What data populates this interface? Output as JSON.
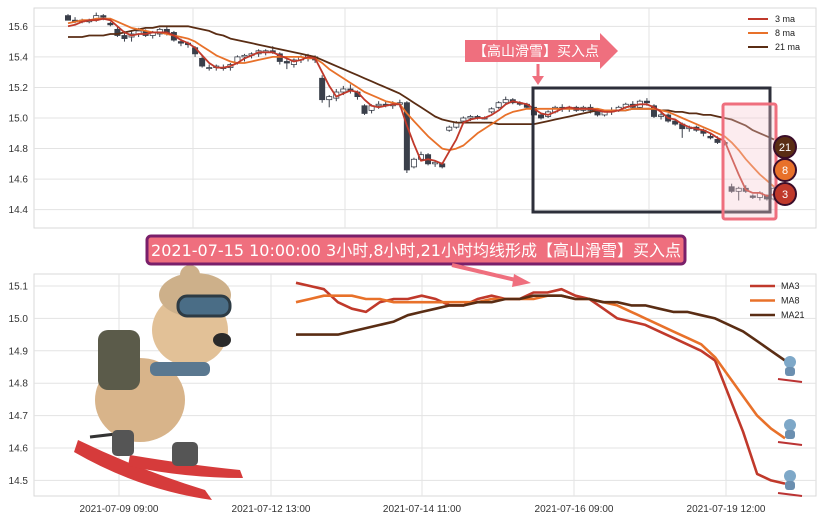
{
  "chart_data": [
    {
      "type": "candlestick",
      "ylim": [
        14.28,
        15.72
      ],
      "yticks": [
        "15.6",
        "15.4",
        "15.2",
        "15.0",
        "14.8",
        "14.6",
        "14.4"
      ],
      "legend": {
        "placement": "top-right",
        "entries": [
          "3 ma",
          "8 ma",
          "21 ma"
        ]
      },
      "grid": true,
      "candles": [
        [
          15.67,
          15.68,
          15.64,
          15.64
        ],
        [
          15.64,
          15.66,
          15.62,
          15.63
        ],
        [
          15.64,
          15.65,
          15.62,
          15.63
        ],
        [
          15.63,
          15.65,
          15.62,
          15.64
        ],
        [
          15.64,
          15.69,
          15.63,
          15.67
        ],
        [
          15.67,
          15.68,
          15.64,
          15.66
        ],
        [
          15.62,
          15.63,
          15.6,
          15.61
        ],
        [
          15.58,
          15.6,
          15.53,
          15.54
        ],
        [
          15.54,
          15.57,
          15.5,
          15.52
        ],
        [
          15.53,
          15.57,
          15.5,
          15.55
        ],
        [
          15.55,
          15.59,
          15.53,
          15.57
        ],
        [
          15.57,
          15.58,
          15.53,
          15.54
        ],
        [
          15.54,
          15.57,
          15.52,
          15.56
        ],
        [
          15.55,
          15.59,
          15.53,
          15.58
        ],
        [
          15.58,
          15.6,
          15.54,
          15.55
        ],
        [
          15.56,
          15.57,
          15.5,
          15.51
        ],
        [
          15.5,
          15.52,
          15.47,
          15.49
        ],
        [
          15.49,
          15.5,
          15.46,
          15.48
        ],
        [
          15.46,
          15.47,
          15.4,
          15.42
        ],
        [
          15.39,
          15.41,
          15.33,
          15.34
        ],
        [
          15.33,
          15.35,
          15.31,
          15.33
        ],
        [
          15.33,
          15.35,
          15.31,
          15.34
        ],
        [
          15.33,
          15.35,
          15.31,
          15.33
        ],
        [
          15.33,
          15.36,
          15.31,
          15.35
        ],
        [
          15.36,
          15.41,
          15.35,
          15.4
        ],
        [
          15.4,
          15.42,
          15.37,
          15.41
        ],
        [
          15.41,
          15.43,
          15.39,
          15.42
        ],
        [
          15.42,
          15.45,
          15.4,
          15.44
        ],
        [
          15.43,
          15.45,
          15.41,
          15.44
        ],
        [
          15.44,
          15.47,
          15.42,
          15.43
        ],
        [
          15.42,
          15.43,
          15.35,
          15.37
        ],
        [
          15.37,
          15.39,
          15.32,
          15.36
        ],
        [
          15.35,
          15.39,
          15.33,
          15.38
        ],
        [
          15.38,
          15.41,
          15.36,
          15.4
        ],
        [
          15.4,
          15.42,
          15.37,
          15.41
        ],
        [
          15.4,
          15.41,
          15.36,
          15.38
        ],
        [
          15.26,
          15.28,
          15.1,
          15.12
        ],
        [
          15.12,
          15.15,
          15.07,
          15.14
        ],
        [
          15.13,
          15.19,
          15.11,
          15.17
        ],
        [
          15.17,
          15.21,
          15.15,
          15.19
        ],
        [
          15.19,
          15.22,
          15.16,
          15.18
        ],
        [
          15.17,
          15.18,
          15.12,
          15.14
        ],
        [
          15.08,
          15.09,
          15.02,
          15.03
        ],
        [
          15.05,
          15.09,
          15.03,
          15.08
        ],
        [
          15.08,
          15.11,
          15.06,
          15.09
        ],
        [
          15.09,
          15.11,
          15.07,
          15.08
        ],
        [
          15.08,
          15.11,
          15.06,
          15.09
        ],
        [
          15.09,
          15.12,
          15.07,
          15.1
        ],
        [
          15.1,
          15.11,
          14.64,
          14.66
        ],
        [
          14.68,
          14.74,
          14.67,
          14.73
        ],
        [
          14.73,
          14.78,
          14.72,
          14.76
        ],
        [
          14.76,
          14.77,
          14.69,
          14.7
        ],
        [
          14.7,
          14.72,
          14.68,
          14.71
        ],
        [
          14.7,
          14.71,
          14.67,
          14.68
        ],
        [
          14.92,
          14.95,
          14.91,
          14.94
        ],
        [
          14.94,
          14.98,
          14.93,
          14.97
        ],
        [
          14.98,
          15.01,
          14.97,
          15.0
        ],
        [
          15.0,
          15.02,
          14.98,
          15.01
        ],
        [
          15.01,
          15.02,
          14.99,
          15.0
        ],
        [
          15.0,
          15.01,
          14.99,
          15.0
        ],
        [
          15.04,
          15.07,
          15.03,
          15.06
        ],
        [
          15.07,
          15.11,
          15.06,
          15.1
        ],
        [
          15.1,
          15.14,
          15.09,
          15.12
        ],
        [
          15.12,
          15.13,
          15.09,
          15.1
        ],
        [
          15.1,
          15.11,
          15.08,
          15.09
        ],
        [
          15.09,
          15.1,
          15.06,
          15.07
        ],
        [
          15.07,
          15.08,
          15.01,
          15.02
        ],
        [
          15.02,
          15.03,
          14.99,
          15.0
        ],
        [
          15.01,
          15.05,
          15.0,
          15.04
        ],
        [
          15.04,
          15.08,
          15.03,
          15.07
        ],
        [
          15.07,
          15.09,
          15.04,
          15.06
        ],
        [
          15.06,
          15.08,
          15.04,
          15.07
        ],
        [
          15.07,
          15.08,
          15.04,
          15.05
        ],
        [
          15.05,
          15.08,
          15.04,
          15.07
        ],
        [
          15.07,
          15.09,
          15.03,
          15.05
        ],
        [
          15.04,
          15.05,
          15.01,
          15.02
        ],
        [
          15.02,
          15.05,
          15.01,
          15.04
        ],
        [
          15.04,
          15.07,
          15.02,
          15.05
        ],
        [
          15.05,
          15.08,
          15.04,
          15.07
        ],
        [
          15.07,
          15.1,
          15.06,
          15.09
        ],
        [
          15.09,
          15.11,
          15.06,
          15.07
        ],
        [
          15.07,
          15.12,
          15.06,
          15.11
        ],
        [
          15.11,
          15.13,
          15.08,
          15.1
        ],
        [
          15.08,
          15.09,
          15.0,
          15.01
        ],
        [
          15.01,
          15.04,
          14.99,
          15.02
        ],
        [
          15.02,
          15.03,
          14.97,
          14.98
        ],
        [
          14.98,
          14.99,
          14.95,
          14.96
        ],
        [
          14.96,
          14.97,
          14.87,
          14.93
        ],
        [
          14.93,
          14.95,
          14.91,
          14.94
        ],
        [
          14.94,
          14.95,
          14.91,
          14.92
        ],
        [
          14.92,
          14.93,
          14.88,
          14.9
        ],
        [
          14.88,
          14.9,
          14.86,
          14.87
        ],
        [
          14.86,
          14.88,
          14.83,
          14.84
        ],
        [
          14.84,
          14.85,
          14.82,
          14.83
        ],
        [
          14.55,
          14.57,
          14.51,
          14.52
        ],
        [
          14.52,
          14.55,
          14.46,
          14.54
        ],
        [
          14.54,
          14.56,
          14.51,
          14.52
        ],
        [
          14.49,
          14.5,
          14.47,
          14.48
        ],
        [
          14.48,
          14.52,
          14.46,
          14.51
        ],
        [
          14.49,
          14.5,
          14.46,
          14.47
        ],
        [
          14.47,
          14.55,
          14.46,
          14.54
        ]
      ],
      "ma3": [
        15.6,
        15.61,
        15.63,
        15.64,
        15.64,
        15.65,
        15.64,
        15.6,
        15.56,
        15.54,
        15.55,
        15.55,
        15.56,
        15.56,
        15.56,
        15.54,
        15.51,
        15.49,
        15.46,
        15.41,
        15.36,
        15.33,
        15.33,
        15.34,
        15.36,
        15.39,
        15.41,
        15.43,
        15.43,
        15.43,
        15.41,
        15.39,
        15.37,
        15.38,
        15.4,
        15.39,
        15.3,
        15.21,
        15.14,
        15.16,
        15.18,
        15.17,
        15.12,
        15.08,
        15.07,
        15.08,
        15.09,
        15.09,
        14.95,
        14.83,
        14.72,
        14.73,
        14.72,
        14.7,
        14.78,
        14.86,
        14.97,
        14.99,
        15.0,
        15.0,
        15.02,
        15.05,
        15.09,
        15.11,
        15.1,
        15.09,
        15.06,
        15.03,
        15.02,
        15.04,
        15.06,
        15.07,
        15.06,
        15.06,
        15.06,
        15.05,
        15.04,
        15.04,
        15.05,
        15.07,
        15.08,
        15.09,
        15.09,
        15.07,
        15.04,
        15.0,
        14.99,
        14.96,
        14.94,
        14.93,
        14.92,
        14.9,
        14.87,
        14.85,
        14.74,
        14.63,
        14.53,
        14.51,
        14.51,
        14.49,
        14.5
      ],
      "ma8": [
        15.62,
        15.63,
        15.64,
        15.64,
        15.65,
        15.65,
        15.65,
        15.63,
        15.61,
        15.59,
        15.58,
        15.57,
        15.56,
        15.56,
        15.55,
        15.54,
        15.53,
        15.52,
        15.5,
        15.47,
        15.44,
        15.41,
        15.39,
        15.37,
        15.36,
        15.36,
        15.37,
        15.38,
        15.39,
        15.4,
        15.4,
        15.4,
        15.4,
        15.4,
        15.39,
        15.39,
        15.36,
        15.32,
        15.29,
        15.26,
        15.23,
        15.2,
        15.17,
        15.15,
        15.13,
        15.11,
        15.1,
        15.09,
        15.03,
        14.98,
        14.93,
        14.88,
        14.84,
        14.8,
        14.79,
        14.8,
        14.82,
        14.86,
        14.9,
        14.93,
        14.96,
        14.99,
        15.02,
        15.04,
        15.05,
        15.06,
        15.06,
        15.06,
        15.06,
        15.06,
        15.06,
        15.06,
        15.06,
        15.06,
        15.06,
        15.06,
        15.05,
        15.05,
        15.05,
        15.05,
        15.06,
        15.06,
        15.06,
        15.06,
        15.05,
        15.04,
        15.02,
        15.0,
        14.98,
        14.96,
        14.94,
        14.92,
        14.9,
        14.88,
        14.84,
        14.79,
        14.73,
        14.68,
        14.63,
        14.59,
        14.55
      ],
      "ma21": [
        15.53,
        15.53,
        15.53,
        15.54,
        15.54,
        15.54,
        15.55,
        15.55,
        15.56,
        15.57,
        15.58,
        15.59,
        15.59,
        15.6,
        15.6,
        15.6,
        15.6,
        15.6,
        15.59,
        15.58,
        15.57,
        15.55,
        15.54,
        15.52,
        15.51,
        15.5,
        15.49,
        15.48,
        15.47,
        15.46,
        15.45,
        15.44,
        15.43,
        15.42,
        15.41,
        15.4,
        15.38,
        15.36,
        15.34,
        15.32,
        15.3,
        15.28,
        15.26,
        15.24,
        15.22,
        15.2,
        15.18,
        15.16,
        15.13,
        15.1,
        15.07,
        15.04,
        15.01,
        14.99,
        14.98,
        14.97,
        14.97,
        14.97,
        14.97,
        14.97,
        14.97,
        14.96,
        14.96,
        14.96,
        14.96,
        14.96,
        14.96,
        14.97,
        14.98,
        14.99,
        15.0,
        15.01,
        15.02,
        15.03,
        15.04,
        15.05,
        15.05,
        15.05,
        15.05,
        15.05,
        15.06,
        15.06,
        15.06,
        15.06,
        15.05,
        15.05,
        15.04,
        15.04,
        15.03,
        15.03,
        15.02,
        15.02,
        15.01,
        15.0,
        14.99,
        14.97,
        14.95,
        14.92,
        14.9,
        14.88,
        14.86
      ],
      "badges": [
        "21",
        "8",
        "3"
      ],
      "annotation": "【高山滑雪】买入点"
    },
    {
      "type": "line",
      "ylim": [
        14.46,
        15.14
      ],
      "yticks": [
        "15.1",
        "15.0",
        "14.9",
        "14.8",
        "14.7",
        "14.6",
        "14.5"
      ],
      "xticks": [
        "2021-07-09 09:00",
        "2021-07-12 13:00",
        "2021-07-14 11:00",
        "2021-07-16 09:00",
        "2021-07-19 12:00"
      ],
      "legend": {
        "placement": "top-right",
        "entries": [
          "MA3",
          "MA8",
          "MA21"
        ]
      },
      "grid": true,
      "series": [
        {
          "name": "MA3",
          "color": "#c0392b",
          "values": [
            15.11,
            15.1,
            15.09,
            15.05,
            15.03,
            15.02,
            15.05,
            15.06,
            15.06,
            15.07,
            15.06,
            15.04,
            15.04,
            15.06,
            15.07,
            15.06,
            15.06,
            15.08,
            15.08,
            15.09,
            15.07,
            15.06,
            15.03,
            15.0,
            14.99,
            14.98,
            14.96,
            14.94,
            14.92,
            14.9,
            14.87,
            14.76,
            14.65,
            14.52,
            14.5,
            14.49
          ]
        },
        {
          "name": "MA8",
          "color": "#e8712a",
          "values": [
            15.05,
            15.06,
            15.07,
            15.07,
            15.07,
            15.06,
            15.06,
            15.05,
            15.05,
            15.05,
            15.05,
            15.05,
            15.05,
            15.05,
            15.06,
            15.06,
            15.06,
            15.06,
            15.07,
            15.07,
            15.06,
            15.06,
            15.05,
            15.04,
            15.02,
            15.0,
            14.98,
            14.96,
            14.94,
            14.92,
            14.88,
            14.82,
            14.76,
            14.7,
            14.66,
            14.63
          ]
        },
        {
          "name": "MA21",
          "color": "#5a2d14",
          "values": [
            14.95,
            14.95,
            14.95,
            14.95,
            14.96,
            14.97,
            14.98,
            14.99,
            15.01,
            15.02,
            15.03,
            15.04,
            15.04,
            15.05,
            15.05,
            15.06,
            15.06,
            15.07,
            15.07,
            15.07,
            15.06,
            15.06,
            15.05,
            15.05,
            15.04,
            15.04,
            15.03,
            15.02,
            15.02,
            15.01,
            15.0,
            14.98,
            14.96,
            14.93,
            14.9,
            14.87
          ]
        }
      ],
      "annotation": "2021-07-15 10:00:00 3小时,8小时,21小时均线形成【高山滑雪】买入点"
    }
  ],
  "colors": {
    "ma3": "#c0392b",
    "ma8": "#e8712a",
    "ma21": "#5a2d14",
    "badge21": "#5a2d14",
    "badge8": "#e8712a",
    "badge3": "#c0392b",
    "callout": "#ef6f7e",
    "callout_border": "#7a1f6a"
  }
}
